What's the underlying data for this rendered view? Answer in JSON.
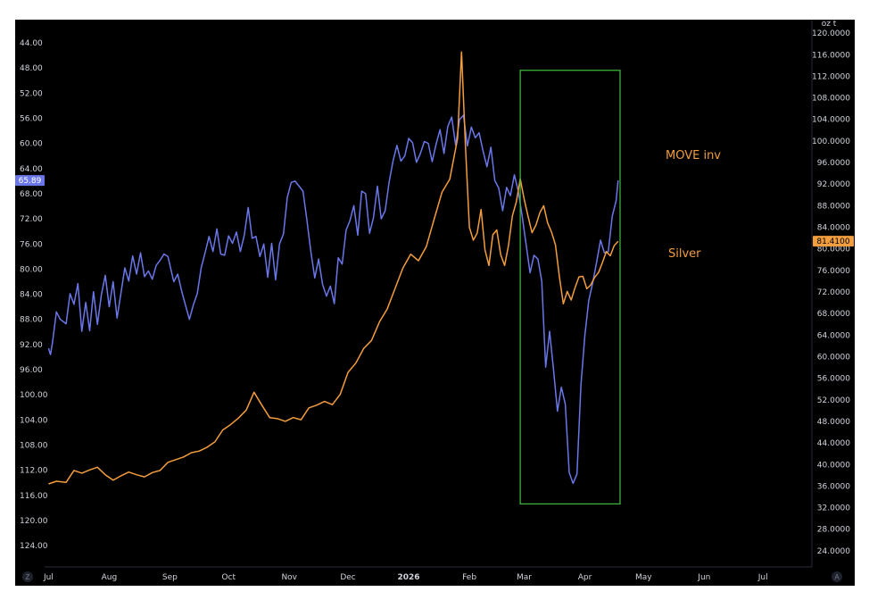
{
  "chart_data": {
    "type": "line",
    "x_axis": {
      "ticks": [
        {
          "label": "Jul",
          "x": "2025-07-01"
        },
        {
          "label": "Aug",
          "x": "2025-08-01"
        },
        {
          "label": "Sep",
          "x": "2025-09-01"
        },
        {
          "label": "Oct",
          "x": "2025-10-01"
        },
        {
          "label": "Nov",
          "x": "2025-11-01"
        },
        {
          "label": "Dec",
          "x": "2025-12-01"
        },
        {
          "label": "2026",
          "x": "2026-01-01"
        },
        {
          "label": "Feb",
          "x": "2026-02-01"
        },
        {
          "label": "Mar",
          "x": "2026-03-01"
        },
        {
          "label": "Apr",
          "x": "2026-04-01"
        },
        {
          "label": "May",
          "x": "2026-05-01"
        },
        {
          "label": "Jun",
          "x": "2026-06-01"
        },
        {
          "label": "Jul",
          "x": "2026-07-01"
        }
      ],
      "range": [
        "2025-06-29",
        "2026-07-26"
      ]
    },
    "left_axis": {
      "inverted": true,
      "range": [
        40.3,
        127.4
      ],
      "ticks": [
        "44.00",
        "48.00",
        "52.00",
        "56.00",
        "60.00",
        "64.00",
        "68.00",
        "72.00",
        "76.00",
        "80.00",
        "84.00",
        "88.00",
        "92.00",
        "96.00",
        "100.00",
        "104.00",
        "108.00",
        "112.00",
        "116.00",
        "120.00",
        "124.00"
      ]
    },
    "right_axis": {
      "range": [
        21.0,
        122.5
      ],
      "ticks": [
        "120.0000",
        "116.0000",
        "112.0000",
        "108.0000",
        "104.0000",
        "100.0000",
        "96.0000",
        "92.0000",
        "88.0000",
        "84.0000",
        "80.0000",
        "76.0000",
        "72.0000",
        "68.0000",
        "64.0000",
        "60.0000",
        "56.0000",
        "52.0000",
        "48.0000",
        "44.0000",
        "40.0000",
        "36.0000",
        "32.0000",
        "28.0000",
        "24.0000"
      ],
      "unit_label": "oz t"
    },
    "series": [
      {
        "name": "MOVE inv",
        "axis": "left",
        "color": "#6b77e8",
        "last_value_label": "65.89",
        "points": [
          [
            "2025-07-01",
            92.6
          ],
          [
            "2025-07-02",
            93.6
          ],
          [
            "2025-07-03",
            91.7
          ],
          [
            "2025-07-05",
            86.8
          ],
          [
            "2025-07-07",
            88.0
          ],
          [
            "2025-07-10",
            88.7
          ],
          [
            "2025-07-12",
            83.9
          ],
          [
            "2025-07-14",
            85.6
          ],
          [
            "2025-07-16",
            82.3
          ],
          [
            "2025-07-18",
            89.9
          ],
          [
            "2025-07-20",
            85.3
          ],
          [
            "2025-07-22",
            89.8
          ],
          [
            "2025-07-24",
            83.6
          ],
          [
            "2025-07-26",
            88.8
          ],
          [
            "2025-07-28",
            84.1
          ],
          [
            "2025-07-30",
            81.0
          ],
          [
            "2025-08-01",
            86.0
          ],
          [
            "2025-08-03",
            82.0
          ],
          [
            "2025-08-05",
            87.8
          ],
          [
            "2025-08-07",
            83.8
          ],
          [
            "2025-08-09",
            79.8
          ],
          [
            "2025-08-11",
            81.9
          ],
          [
            "2025-08-13",
            77.9
          ],
          [
            "2025-08-15",
            80.8
          ],
          [
            "2025-08-17",
            77.4
          ],
          [
            "2025-08-19",
            81.2
          ],
          [
            "2025-08-21",
            80.3
          ],
          [
            "2025-08-23",
            81.6
          ],
          [
            "2025-08-25",
            79.4
          ],
          [
            "2025-08-27",
            78.6
          ],
          [
            "2025-08-29",
            77.6
          ],
          [
            "2025-08-31",
            78.0
          ],
          [
            "2025-09-03",
            82.0
          ],
          [
            "2025-09-05",
            80.8
          ],
          [
            "2025-09-07",
            83.5
          ],
          [
            "2025-09-09",
            85.8
          ],
          [
            "2025-09-11",
            88.0
          ],
          [
            "2025-09-13",
            85.7
          ],
          [
            "2025-09-15",
            83.9
          ],
          [
            "2025-09-17",
            79.8
          ],
          [
            "2025-09-19",
            77.4
          ],
          [
            "2025-09-21",
            74.8
          ],
          [
            "2025-09-23",
            77.2
          ],
          [
            "2025-09-25",
            73.6
          ],
          [
            "2025-09-27",
            77.6
          ],
          [
            "2025-09-29",
            77.8
          ],
          [
            "2025-10-01",
            74.7
          ],
          [
            "2025-10-03",
            75.9
          ],
          [
            "2025-10-05",
            74.1
          ],
          [
            "2025-10-07",
            77.2
          ],
          [
            "2025-10-09",
            74.6
          ],
          [
            "2025-10-11",
            70.2
          ],
          [
            "2025-10-13",
            75.1
          ],
          [
            "2025-10-15",
            74.8
          ],
          [
            "2025-10-17",
            78.0
          ],
          [
            "2025-10-19",
            76.0
          ],
          [
            "2025-10-21",
            81.3
          ],
          [
            "2025-10-23",
            75.9
          ],
          [
            "2025-10-25",
            81.7
          ],
          [
            "2025-10-27",
            76.0
          ],
          [
            "2025-10-29",
            74.4
          ],
          [
            "2025-10-31",
            68.6
          ],
          [
            "2025-11-02",
            66.2
          ],
          [
            "2025-11-04",
            66.0
          ],
          [
            "2025-11-06",
            66.8
          ],
          [
            "2025-11-08",
            67.6
          ],
          [
            "2025-11-10",
            72.2
          ],
          [
            "2025-11-12",
            77.2
          ],
          [
            "2025-11-14",
            81.4
          ],
          [
            "2025-11-16",
            78.4
          ],
          [
            "2025-11-18",
            82.4
          ],
          [
            "2025-11-20",
            84.3
          ],
          [
            "2025-11-22",
            82.7
          ],
          [
            "2025-11-24",
            85.5
          ],
          [
            "2025-11-26",
            78.2
          ],
          [
            "2025-11-28",
            79.2
          ],
          [
            "2025-11-30",
            73.8
          ],
          [
            "2025-12-02",
            72.3
          ],
          [
            "2025-12-04",
            69.9
          ],
          [
            "2025-12-06",
            74.6
          ],
          [
            "2025-12-08",
            67.6
          ],
          [
            "2025-12-10",
            68.0
          ],
          [
            "2025-12-12",
            74.3
          ],
          [
            "2025-12-14",
            71.8
          ],
          [
            "2025-12-16",
            66.8
          ],
          [
            "2025-12-18",
            72.0
          ],
          [
            "2025-12-20",
            70.7
          ],
          [
            "2025-12-22",
            66.2
          ],
          [
            "2025-12-24",
            62.8
          ],
          [
            "2025-12-26",
            60.3
          ],
          [
            "2025-12-28",
            62.8
          ],
          [
            "2025-12-30",
            62.0
          ],
          [
            "2026-01-01",
            59.2
          ],
          [
            "2026-01-03",
            59.9
          ],
          [
            "2026-01-05",
            63.0
          ],
          [
            "2026-01-07",
            61.6
          ],
          [
            "2026-01-09",
            59.7
          ],
          [
            "2026-01-11",
            60.0
          ],
          [
            "2026-01-13",
            62.9
          ],
          [
            "2026-01-15",
            60.1
          ],
          [
            "2026-01-17",
            57.8
          ],
          [
            "2026-01-19",
            61.6
          ],
          [
            "2026-01-21",
            57.3
          ],
          [
            "2026-01-23",
            55.8
          ],
          [
            "2026-01-25",
            60.3
          ],
          [
            "2026-01-27",
            56.2
          ],
          [
            "2026-01-29",
            55.5
          ],
          [
            "2026-01-31",
            60.4
          ],
          [
            "2026-02-02",
            57.4
          ],
          [
            "2026-02-04",
            59.1
          ],
          [
            "2026-02-06",
            58.3
          ],
          [
            "2026-02-08",
            61.2
          ],
          [
            "2026-02-10",
            63.7
          ],
          [
            "2026-02-12",
            60.6
          ],
          [
            "2026-02-14",
            65.9
          ],
          [
            "2026-02-16",
            67.1
          ],
          [
            "2026-02-18",
            70.7
          ],
          [
            "2026-02-20",
            67.0
          ],
          [
            "2026-02-22",
            68.3
          ],
          [
            "2026-02-24",
            65.0
          ],
          [
            "2026-02-26",
            67.6
          ],
          [
            "2026-02-28",
            71.6
          ],
          [
            "2026-03-02",
            76.1
          ],
          [
            "2026-03-04",
            80.6
          ],
          [
            "2026-03-06",
            77.8
          ],
          [
            "2026-03-08",
            78.4
          ],
          [
            "2026-03-10",
            81.9
          ],
          [
            "2026-03-12",
            95.6
          ],
          [
            "2026-03-14",
            89.9
          ],
          [
            "2026-03-16",
            96.0
          ],
          [
            "2026-03-18",
            102.6
          ],
          [
            "2026-03-20",
            98.8
          ],
          [
            "2026-03-22",
            101.5
          ],
          [
            "2026-03-24",
            112.4
          ],
          [
            "2026-03-26",
            114.1
          ],
          [
            "2026-03-28",
            112.6
          ],
          [
            "2026-03-30",
            98.5
          ],
          [
            "2026-04-01",
            90.6
          ],
          [
            "2026-04-03",
            85.0
          ],
          [
            "2026-04-05",
            82.2
          ],
          [
            "2026-04-07",
            78.9
          ],
          [
            "2026-04-09",
            75.4
          ],
          [
            "2026-04-11",
            77.4
          ],
          [
            "2026-04-13",
            77.2
          ],
          [
            "2026-04-15",
            71.6
          ],
          [
            "2026-04-17",
            69.1
          ],
          [
            "2026-04-18",
            65.89
          ]
        ]
      },
      {
        "name": "Silver",
        "axis": "right",
        "color": "#f29d3e",
        "last_value_label": "81.4100",
        "points": [
          [
            "2025-07-01",
            36.4
          ],
          [
            "2025-07-05",
            36.9
          ],
          [
            "2025-07-10",
            36.7
          ],
          [
            "2025-07-14",
            38.9
          ],
          [
            "2025-07-18",
            38.4
          ],
          [
            "2025-07-22",
            39.0
          ],
          [
            "2025-07-26",
            39.5
          ],
          [
            "2025-07-30",
            38.1
          ],
          [
            "2025-08-03",
            37.1
          ],
          [
            "2025-08-07",
            37.9
          ],
          [
            "2025-08-11",
            38.6
          ],
          [
            "2025-08-15",
            38.1
          ],
          [
            "2025-08-19",
            37.7
          ],
          [
            "2025-08-23",
            38.5
          ],
          [
            "2025-08-27",
            38.9
          ],
          [
            "2025-08-31",
            40.4
          ],
          [
            "2025-09-04",
            40.9
          ],
          [
            "2025-09-08",
            41.4
          ],
          [
            "2025-09-12",
            42.2
          ],
          [
            "2025-09-16",
            42.5
          ],
          [
            "2025-09-20",
            43.2
          ],
          [
            "2025-09-24",
            44.2
          ],
          [
            "2025-09-28",
            46.4
          ],
          [
            "2025-10-02",
            47.4
          ],
          [
            "2025-10-06",
            48.6
          ],
          [
            "2025-10-10",
            50.1
          ],
          [
            "2025-10-14",
            53.4
          ],
          [
            "2025-10-18",
            51.0
          ],
          [
            "2025-10-22",
            48.7
          ],
          [
            "2025-10-26",
            48.5
          ],
          [
            "2025-10-30",
            48.0
          ],
          [
            "2025-11-03",
            48.7
          ],
          [
            "2025-11-07",
            48.3
          ],
          [
            "2025-11-11",
            50.5
          ],
          [
            "2025-11-15",
            51.0
          ],
          [
            "2025-11-19",
            51.7
          ],
          [
            "2025-11-23",
            51.1
          ],
          [
            "2025-11-27",
            53.0
          ],
          [
            "2025-12-01",
            57.1
          ],
          [
            "2025-12-05",
            58.8
          ],
          [
            "2025-12-09",
            61.5
          ],
          [
            "2025-12-13",
            63.0
          ],
          [
            "2025-12-17",
            66.4
          ],
          [
            "2025-12-21",
            68.8
          ],
          [
            "2025-12-25",
            72.6
          ],
          [
            "2025-12-29",
            76.4
          ],
          [
            "2026-01-02",
            79.0
          ],
          [
            "2026-01-06",
            77.8
          ],
          [
            "2026-01-10",
            80.4
          ],
          [
            "2026-01-14",
            85.5
          ],
          [
            "2026-01-18",
            90.5
          ],
          [
            "2026-01-22",
            92.9
          ],
          [
            "2026-01-26",
            100.5
          ],
          [
            "2026-01-28",
            116.5
          ],
          [
            "2026-01-30",
            99.0
          ],
          [
            "2026-02-01",
            84.0
          ],
          [
            "2026-02-03",
            81.6
          ],
          [
            "2026-02-05",
            82.9
          ],
          [
            "2026-02-07",
            87.3
          ],
          [
            "2026-02-09",
            79.8
          ],
          [
            "2026-02-11",
            76.9
          ],
          [
            "2026-02-13",
            82.6
          ],
          [
            "2026-02-15",
            83.5
          ],
          [
            "2026-02-17",
            78.9
          ],
          [
            "2026-02-19",
            76.9
          ],
          [
            "2026-02-21",
            80.6
          ],
          [
            "2026-02-23",
            86.1
          ],
          [
            "2026-02-25",
            88.7
          ],
          [
            "2026-02-27",
            93.0
          ],
          [
            "2026-03-01",
            89.2
          ],
          [
            "2026-03-03",
            86.0
          ],
          [
            "2026-03-05",
            83.0
          ],
          [
            "2026-03-07",
            84.4
          ],
          [
            "2026-03-09",
            86.7
          ],
          [
            "2026-03-11",
            88.0
          ],
          [
            "2026-03-13",
            84.8
          ],
          [
            "2026-03-15",
            83.1
          ],
          [
            "2026-03-17",
            80.7
          ],
          [
            "2026-03-19",
            74.8
          ],
          [
            "2026-03-21",
            69.8
          ],
          [
            "2026-03-23",
            72.1
          ],
          [
            "2026-03-25",
            70.5
          ],
          [
            "2026-03-27",
            72.8
          ],
          [
            "2026-03-29",
            74.8
          ],
          [
            "2026-03-31",
            74.9
          ],
          [
            "2026-04-02",
            72.6
          ],
          [
            "2026-04-04",
            73.3
          ],
          [
            "2026-04-06",
            74.7
          ],
          [
            "2026-04-08",
            75.6
          ],
          [
            "2026-04-10",
            77.5
          ],
          [
            "2026-04-12",
            79.5
          ],
          [
            "2026-04-14",
            78.7
          ],
          [
            "2026-04-16",
            80.6
          ],
          [
            "2026-04-18",
            81.41
          ]
        ]
      }
    ],
    "annotations": [
      {
        "text": "MOVE inv",
        "color": "#f29d3e"
      },
      {
        "text": "Silver",
        "color": "#f29d3e"
      }
    ],
    "highlight_box": {
      "color": "#3fbf3f",
      "x": [
        "2026-02-27",
        "2026-04-19"
      ],
      "y_right": [
        113.1,
        32.7
      ]
    },
    "corner_labels": {
      "left": "Z",
      "right": "A"
    }
  }
}
